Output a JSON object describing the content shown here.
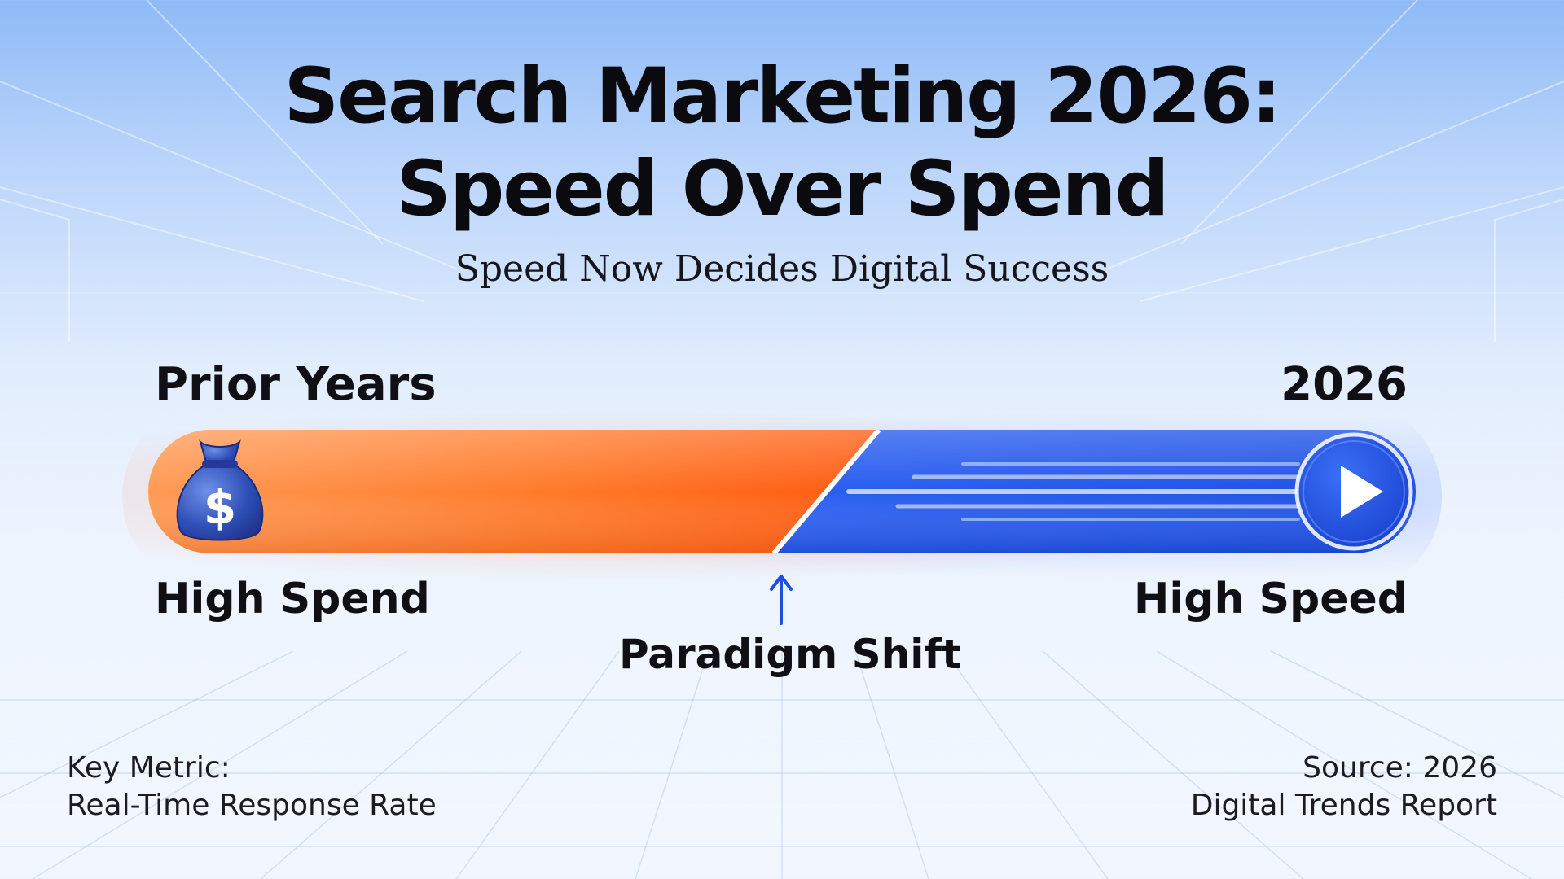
{
  "title": {
    "line1": "Search Marketing 2026:",
    "line2": "Speed Over Spend"
  },
  "subtitle": "Speed Now Decides Digital Success",
  "transition": {
    "left_period": "Prior Years",
    "right_period": "2026",
    "left_state": "High Spend",
    "right_state": "High Speed",
    "pivot_label": "Paradigm Shift",
    "left_color": "#ff6a1a",
    "right_color": "#2358ee",
    "left_icon": "money-bag-dollar-icon",
    "right_icon": "play-icon",
    "pivot_icon": "arrow-up-icon"
  },
  "footer": {
    "left_line1": "Key Metric:",
    "left_line2": "Real-Time Response Rate",
    "right_line1": "Source: 2026",
    "right_line2": "Digital Trends Report"
  }
}
